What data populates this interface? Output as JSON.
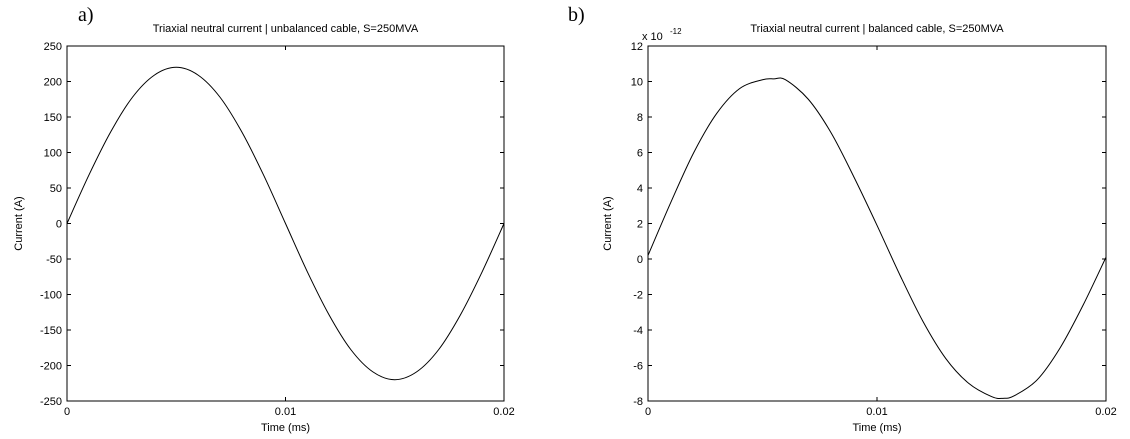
{
  "panel_labels": [
    "a)",
    "b)"
  ],
  "chart_data": [
    {
      "type": "line",
      "title": "Triaxial neutral current | unbalanced cable, S=250MVA",
      "xlabel": "Time (ms)",
      "ylabel": "Current (A)",
      "xlim": [
        0,
        0.02
      ],
      "ylim": [
        -250,
        250
      ],
      "xticks": [
        0,
        0.01,
        0.02
      ],
      "xtick_labels": [
        "0",
        "0.01",
        "0.02"
      ],
      "yticks": [
        -250,
        -200,
        -150,
        -100,
        -50,
        0,
        50,
        100,
        150,
        200,
        250
      ],
      "ytick_labels": [
        "-250",
        "-200",
        "-150",
        "-100",
        "-50",
        "0",
        "50",
        "100",
        "150",
        "200",
        "250"
      ],
      "exponent_label": "",
      "grid": false,
      "line_color": "#000000",
      "series": [
        {
          "x": [
            0,
            0.001,
            0.002,
            0.003,
            0.004,
            0.005,
            0.006,
            0.007,
            0.008,
            0.009,
            0.01,
            0.011,
            0.012,
            0.013,
            0.014,
            0.015,
            0.016,
            0.017,
            0.018,
            0.019,
            0.02
          ],
          "y": [
            0,
            68,
            129,
            178,
            209,
            220,
            209,
            178,
            129,
            68,
            0,
            -68,
            -129,
            -178,
            -209,
            -220,
            -209,
            -178,
            -129,
            -68,
            0
          ]
        }
      ]
    },
    {
      "type": "line",
      "title": "Triaxial neutral current | balanced cable, S=250MVA",
      "xlabel": "Time (ms)",
      "ylabel": "Current (A)",
      "xlim": [
        0,
        0.02
      ],
      "ylim": [
        -8,
        12
      ],
      "xticks": [
        0,
        0.01,
        0.02
      ],
      "xtick_labels": [
        "0",
        "0.01",
        "0.02"
      ],
      "yticks": [
        -8,
        -6,
        -4,
        -2,
        0,
        2,
        4,
        6,
        8,
        10,
        12
      ],
      "ytick_labels": [
        "-8",
        "-6",
        "-4",
        "-2",
        "0",
        "2",
        "4",
        "6",
        "8",
        "10",
        "12"
      ],
      "exponent_base": "x 10",
      "exponent_power": "-12",
      "grid": false,
      "line_color": "#000000",
      "series": [
        {
          "x": [
            0,
            0.001,
            0.002,
            0.003,
            0.004,
            0.005,
            0.0055,
            0.006,
            0.007,
            0.008,
            0.009,
            0.01,
            0.011,
            0.012,
            0.013,
            0.014,
            0.015,
            0.0155,
            0.016,
            0.017,
            0.018,
            0.019,
            0.02
          ],
          "y": [
            0.2,
            3.2,
            6.0,
            8.2,
            9.6,
            10.1,
            10.15,
            10.1,
            9.0,
            7.1,
            4.6,
            1.9,
            -0.9,
            -3.5,
            -5.6,
            -7.0,
            -7.75,
            -7.85,
            -7.7,
            -6.8,
            -5.0,
            -2.6,
            0.1
          ]
        }
      ]
    }
  ]
}
